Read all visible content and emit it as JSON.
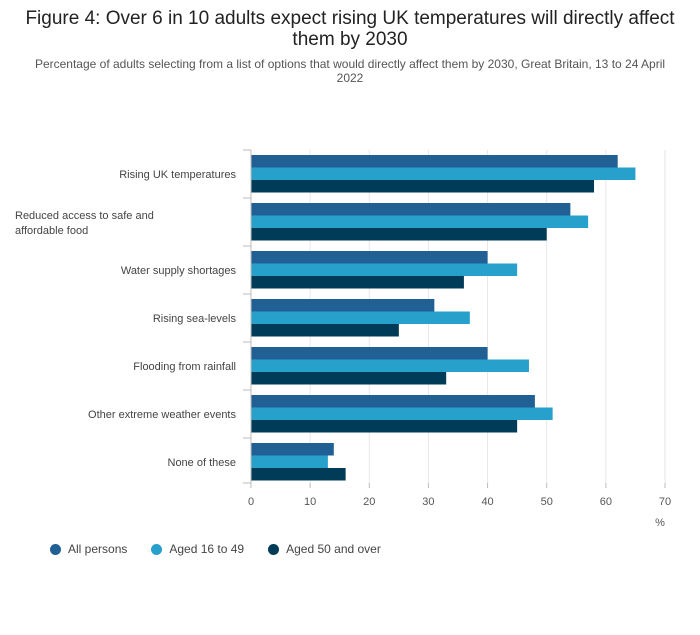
{
  "title": "Figure 4: Over 6 in 10 adults expect rising UK temperatures will directly affect them by 2030",
  "subtitle": "Percentage of adults selecting from a list of options that would directly affect them by 2030, Great Britain, 13 to 24 April 2022",
  "chart_data": {
    "type": "bar",
    "orientation": "horizontal",
    "categories": [
      "Rising UK temperatures",
      "Reduced access to safe and affordable food",
      "Water supply shortages",
      "Rising sea-levels",
      "Flooding from rainfall",
      "Other extreme weather events",
      "None of these"
    ],
    "series": [
      {
        "name": "All persons",
        "color": "#206095",
        "values": [
          62,
          54,
          40,
          31,
          40,
          48,
          14
        ]
      },
      {
        "name": "Aged 16 to 49",
        "color": "#27a0cc",
        "values": [
          65,
          57,
          45,
          37,
          47,
          51,
          13
        ]
      },
      {
        "name": "Aged 50 and over",
        "color": "#003c57",
        "values": [
          58,
          50,
          36,
          25,
          33,
          45,
          16
        ]
      }
    ],
    "xlim": [
      0,
      70
    ],
    "xticks": [
      0,
      10,
      20,
      30,
      40,
      50,
      60,
      70
    ],
    "xlabel": "%",
    "grid": true,
    "legend": "bottom-left"
  }
}
